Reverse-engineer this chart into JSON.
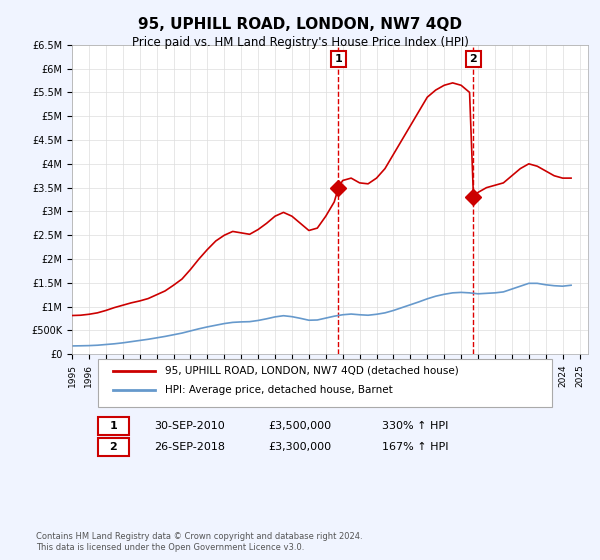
{
  "title": "95, UPHILL ROAD, LONDON, NW7 4QD",
  "subtitle": "Price paid vs. HM Land Registry's House Price Index (HPI)",
  "ylabel_ticks": [
    "£0",
    "£500K",
    "£1M",
    "£1.5M",
    "£2M",
    "£2.5M",
    "£3M",
    "£3.5M",
    "£4M",
    "£4.5M",
    "£5M",
    "£5.5M",
    "£6M",
    "£6.5M"
  ],
  "ylim": [
    0,
    6500000
  ],
  "ytick_values": [
    0,
    500000,
    1000000,
    1500000,
    2000000,
    2500000,
    3000000,
    3500000,
    4000000,
    4500000,
    5000000,
    5500000,
    6000000,
    6500000
  ],
  "xlim_start": 1995.0,
  "xlim_end": 2025.5,
  "sale1_x": 2010.75,
  "sale1_y": 3500000,
  "sale1_label": "30-SEP-2010",
  "sale1_price": "£3,500,000",
  "sale1_hpi": "330% ↑ HPI",
  "sale2_x": 2018.73,
  "sale2_y": 3300000,
  "sale2_label": "26-SEP-2018",
  "sale2_price": "£3,300,000",
  "sale2_hpi": "167% ↑ HPI",
  "red_line_color": "#cc0000",
  "blue_line_color": "#6699cc",
  "background_color": "#f0f4ff",
  "plot_bg_color": "#ffffff",
  "grid_color": "#dddddd",
  "vline_color": "#dd0000",
  "legend_label_red": "95, UPHILL ROAD, LONDON, NW7 4QD (detached house)",
  "legend_label_blue": "HPI: Average price, detached house, Barnet",
  "footer": "Contains HM Land Registry data © Crown copyright and database right 2024.\nThis data is licensed under the Open Government Licence v3.0.",
  "red_hpi_line_x": [
    1995.0,
    1995.5,
    1996.0,
    1996.5,
    1997.0,
    1997.5,
    1998.0,
    1998.5,
    1999.0,
    1999.5,
    2000.0,
    2000.5,
    2001.0,
    2001.5,
    2002.0,
    2002.5,
    2003.0,
    2003.5,
    2004.0,
    2004.5,
    2005.0,
    2005.5,
    2006.0,
    2006.5,
    2007.0,
    2007.5,
    2008.0,
    2008.5,
    2009.0,
    2009.5,
    2010.0,
    2010.5,
    2010.75,
    2011.0,
    2011.5,
    2012.0,
    2012.5,
    2013.0,
    2013.5,
    2014.0,
    2014.5,
    2015.0,
    2015.5,
    2016.0,
    2016.5,
    2017.0,
    2017.5,
    2018.0,
    2018.5,
    2018.73,
    2019.0,
    2019.5,
    2020.0,
    2020.5,
    2021.0,
    2021.5,
    2022.0,
    2022.5,
    2023.0,
    2023.5,
    2024.0,
    2024.5
  ],
  "red_hpi_line_y": [
    814000,
    820000,
    840000,
    870000,
    920000,
    980000,
    1030000,
    1080000,
    1120000,
    1170000,
    1250000,
    1330000,
    1450000,
    1580000,
    1780000,
    2000000,
    2200000,
    2380000,
    2500000,
    2580000,
    2550000,
    2520000,
    2620000,
    2750000,
    2900000,
    2980000,
    2900000,
    2750000,
    2600000,
    2650000,
    2900000,
    3200000,
    3500000,
    3650000,
    3700000,
    3600000,
    3580000,
    3700000,
    3900000,
    4200000,
    4500000,
    4800000,
    5100000,
    5400000,
    5550000,
    5650000,
    5700000,
    5650000,
    5500000,
    3300000,
    3400000,
    3500000,
    3550000,
    3600000,
    3750000,
    3900000,
    4000000,
    3950000,
    3850000,
    3750000,
    3700000,
    3700000
  ],
  "blue_hpi_line_x": [
    1995.0,
    1995.5,
    1996.0,
    1996.5,
    1997.0,
    1997.5,
    1998.0,
    1998.5,
    1999.0,
    1999.5,
    2000.0,
    2000.5,
    2001.0,
    2001.5,
    2002.0,
    2002.5,
    2003.0,
    2003.5,
    2004.0,
    2004.5,
    2005.0,
    2005.5,
    2006.0,
    2006.5,
    2007.0,
    2007.5,
    2008.0,
    2008.5,
    2009.0,
    2009.5,
    2010.0,
    2010.5,
    2011.0,
    2011.5,
    2012.0,
    2012.5,
    2013.0,
    2013.5,
    2014.0,
    2014.5,
    2015.0,
    2015.5,
    2016.0,
    2016.5,
    2017.0,
    2017.5,
    2018.0,
    2018.5,
    2019.0,
    2019.5,
    2020.0,
    2020.5,
    2021.0,
    2021.5,
    2022.0,
    2022.5,
    2023.0,
    2023.5,
    2024.0,
    2024.5
  ],
  "blue_hpi_line_y": [
    175000,
    178000,
    182000,
    190000,
    205000,
    220000,
    240000,
    265000,
    290000,
    315000,
    345000,
    375000,
    410000,
    445000,
    490000,
    535000,
    575000,
    610000,
    645000,
    670000,
    680000,
    685000,
    710000,
    745000,
    785000,
    810000,
    790000,
    755000,
    715000,
    720000,
    760000,
    800000,
    830000,
    845000,
    830000,
    820000,
    840000,
    870000,
    920000,
    980000,
    1040000,
    1100000,
    1165000,
    1220000,
    1260000,
    1290000,
    1300000,
    1290000,
    1270000,
    1280000,
    1290000,
    1310000,
    1370000,
    1430000,
    1490000,
    1490000,
    1460000,
    1440000,
    1430000,
    1450000
  ]
}
